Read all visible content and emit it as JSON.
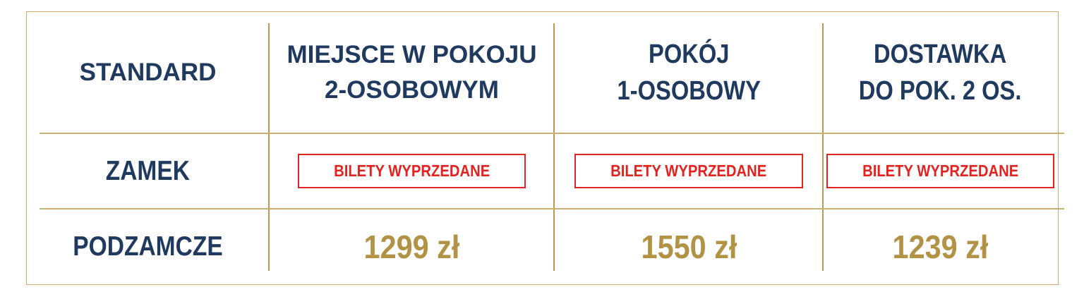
{
  "colors": {
    "navy": "#1f3a5e",
    "gold_text": "#b29245",
    "gold_line": "#b59a52",
    "gold_rule": "#c9b074",
    "gold_border": "#c9ad74",
    "red": "#e42320",
    "background": "#ffffff"
  },
  "table": {
    "headers": [
      {
        "lines": [
          "STANDARD"
        ]
      },
      {
        "lines": [
          "MIEJSCE W POKOJU",
          "2-OSOBOWYM"
        ]
      },
      {
        "lines": [
          "POKÓJ",
          "1-OSOBOWY"
        ]
      },
      {
        "lines": [
          "DOSTAWKA",
          "DO POK. 2 OS."
        ]
      }
    ],
    "rows": [
      {
        "label": "ZAMEK",
        "cells": [
          {
            "type": "sold_out",
            "text": "BILETY WYPRZEDANE"
          },
          {
            "type": "sold_out",
            "text": "BILETY WYPRZEDANE"
          },
          {
            "type": "sold_out",
            "text": "BILETY WYPRZEDANE"
          }
        ]
      },
      {
        "label": "PODZAMCZE",
        "cells": [
          {
            "type": "price",
            "text": "1299 zł"
          },
          {
            "type": "price",
            "text": "1550 zł"
          },
          {
            "type": "price",
            "text": "1239 zł"
          }
        ]
      }
    ]
  }
}
